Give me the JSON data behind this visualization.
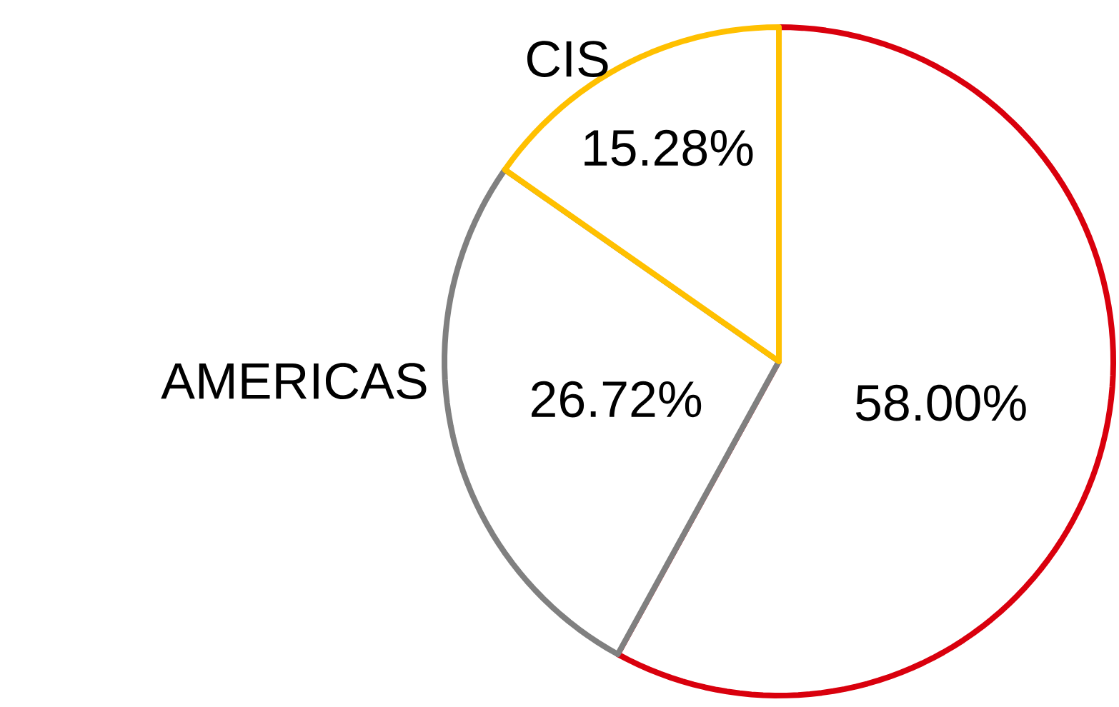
{
  "chart_data": {
    "type": "pie",
    "categories": [
      null,
      "AMERICAS",
      "CIS"
    ],
    "values": [
      58.0,
      26.72,
      15.28
    ],
    "value_labels": [
      "58.00%",
      "26.72%",
      "15.28%"
    ],
    "colors": [
      "#d9000d",
      "#808080",
      "#ffc000"
    ]
  }
}
